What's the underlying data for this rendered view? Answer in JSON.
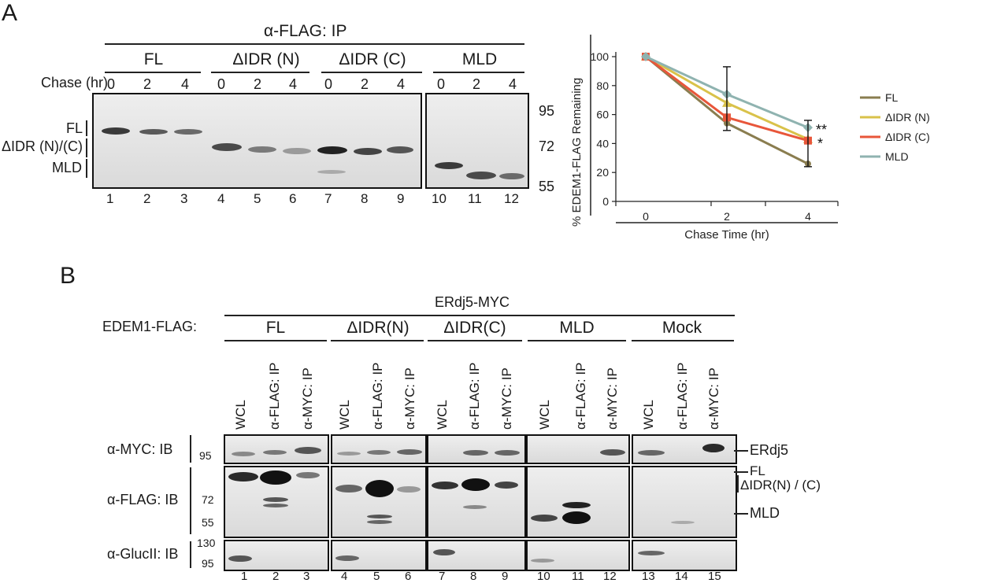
{
  "panel_a": {
    "letter": "A",
    "ip_title": "α-FLAG: IP",
    "groups": [
      "FL",
      "ΔIDR (N)",
      "ΔIDR (C)",
      "MLD"
    ],
    "chase_label": "Chase (hr)",
    "chase_times": [
      "0",
      "2",
      "4",
      "0",
      "2",
      "4",
      "0",
      "2",
      "4",
      "0",
      "2",
      "4"
    ],
    "band_labels": [
      "FL",
      "ΔIDR (N)/(C)",
      "MLD"
    ],
    "mw_markers": [
      "95",
      "72",
      "55"
    ],
    "lanes": [
      "1",
      "2",
      "3",
      "4",
      "5",
      "6",
      "7",
      "8",
      "9",
      "10",
      "11",
      "12"
    ]
  },
  "chart_data": {
    "type": "line",
    "x": [
      0,
      2,
      4
    ],
    "xlabel": "Chase Time (hr)",
    "ylabel": "% EDEM1-FLAG Remaining",
    "ylim": [
      0,
      100
    ],
    "yticks": [
      0,
      20,
      40,
      60,
      80,
      100
    ],
    "xticks": [
      "0",
      "2",
      "4"
    ],
    "legend_position": "right",
    "series": [
      {
        "name": "FL",
        "values": [
          100,
          54,
          26
        ],
        "color": "#8a7d4f",
        "marker": "asterisk"
      },
      {
        "name": "ΔIDR (N)",
        "values": [
          100,
          68,
          43
        ],
        "color": "#d9c24a",
        "marker": "triangle"
      },
      {
        "name": "ΔIDR (C)",
        "values": [
          100,
          58,
          42
        ],
        "color": "#e8563a",
        "marker": "square"
      },
      {
        "name": "MLD",
        "values": [
          100,
          74,
          51
        ],
        "color": "#8fb3b0",
        "marker": "diamond"
      }
    ],
    "error_bars": [
      {
        "x": 2,
        "low": 49,
        "high": 93
      },
      {
        "x": 4,
        "low": 24,
        "high": 56
      }
    ],
    "annotations": [
      "**",
      "*"
    ]
  },
  "panel_b": {
    "letter": "B",
    "top_title": "ERdj5-MYC",
    "row_title": "EDEM1-FLAG:",
    "groups": [
      "FL",
      "ΔIDR(N)",
      "ΔIDR(C)",
      "MLD",
      "Mock"
    ],
    "lane_headers": [
      "WCL",
      "α-FLAG: IP",
      "α-MYC: IP"
    ],
    "blot_labels": [
      "α-MYC: IB",
      "α-FLAG: IB",
      "α-GlucII: IB"
    ],
    "mw_myc": [
      "95"
    ],
    "mw_flag": [
      "72",
      "55"
    ],
    "mw_gluc": [
      "130",
      "95"
    ],
    "right_labels": [
      "ERdj5",
      "FL",
      "ΔIDR(N) / (C)",
      "MLD"
    ],
    "lanes": [
      "1",
      "2",
      "3",
      "4",
      "5",
      "6",
      "7",
      "8",
      "9",
      "10",
      "11",
      "12",
      "13",
      "14",
      "15"
    ]
  }
}
